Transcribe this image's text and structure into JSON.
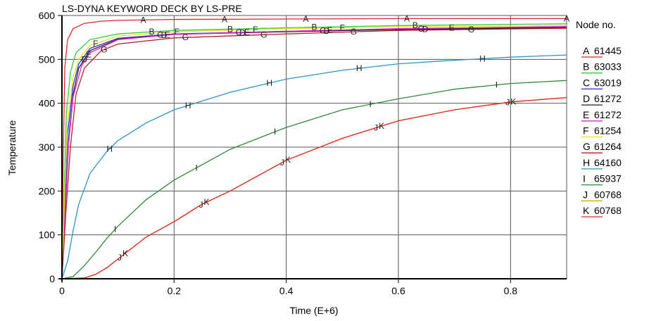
{
  "chart_data": {
    "type": "line",
    "title": "LS-DYNA KEYWORD DECK BY LS-PRE",
    "xlabel": "Time (E+6)",
    "ylabel": "Temperature",
    "xlim": [
      0,
      0.9
    ],
    "ylim": [
      0,
      600
    ],
    "xticks": [
      0,
      0.2,
      0.4,
      0.6,
      0.8
    ],
    "yticks": [
      0,
      100,
      200,
      300,
      400,
      500,
      600
    ],
    "xtick_labels": [
      "0",
      "0.2",
      "0.4",
      "0.6",
      "0.8"
    ],
    "ytick_labels": [
      "0",
      "100",
      "200",
      "300",
      "400",
      "500",
      "600"
    ],
    "grid": true,
    "legend": {
      "title": "Node no.",
      "position": "right"
    },
    "series": [
      {
        "marker": "A",
        "name": "61445",
        "color": "#e0262b",
        "points": [
          [
            0,
            0
          ],
          [
            0.002,
            250
          ],
          [
            0.005,
            480
          ],
          [
            0.01,
            545
          ],
          [
            0.02,
            570
          ],
          [
            0.04,
            582
          ],
          [
            0.07,
            587
          ],
          [
            0.1,
            589
          ],
          [
            0.2,
            591
          ],
          [
            0.4,
            592
          ],
          [
            0.6,
            593
          ],
          [
            0.9,
            593
          ]
        ],
        "marker_x": [
          0.145,
          0.29,
          0.435,
          0.615,
          0.9
        ]
      },
      {
        "marker": "B",
        "name": "63033",
        "color": "#3cc83c",
        "points": [
          [
            0,
            0
          ],
          [
            0.004,
            200
          ],
          [
            0.008,
            380
          ],
          [
            0.015,
            470
          ],
          [
            0.025,
            515
          ],
          [
            0.05,
            545
          ],
          [
            0.1,
            558
          ],
          [
            0.2,
            566
          ],
          [
            0.4,
            572
          ],
          [
            0.6,
            577
          ],
          [
            0.9,
            581
          ]
        ],
        "marker_x": [
          0.16,
          0.3,
          0.45,
          0.63
        ]
      },
      {
        "marker": "C",
        "name": "63019",
        "color": "#2e2ecf",
        "points": [
          [
            0,
            0
          ],
          [
            0.005,
            180
          ],
          [
            0.01,
            330
          ],
          [
            0.02,
            440
          ],
          [
            0.03,
            490
          ],
          [
            0.05,
            525
          ],
          [
            0.1,
            548
          ],
          [
            0.2,
            558
          ],
          [
            0.4,
            564
          ],
          [
            0.6,
            569
          ],
          [
            0.9,
            573
          ]
        ],
        "marker_x": [
          0.175,
          0.315,
          0.465,
          0.64
        ]
      },
      {
        "marker": "D",
        "name": "61272",
        "color": "#222222",
        "points": [
          [
            0,
            0
          ],
          [
            0.006,
            170
          ],
          [
            0.012,
            320
          ],
          [
            0.02,
            420
          ],
          [
            0.03,
            480
          ],
          [
            0.05,
            520
          ],
          [
            0.1,
            546
          ],
          [
            0.2,
            557
          ],
          [
            0.4,
            563
          ],
          [
            0.6,
            568
          ],
          [
            0.9,
            572
          ]
        ],
        "marker_x": [
          0.04,
          0.182,
          0.322,
          0.472,
          0.648
        ]
      },
      {
        "marker": "E",
        "name": "61272",
        "color": "#e61ee6",
        "points": [
          [
            0,
            0
          ],
          [
            0.006,
            160
          ],
          [
            0.012,
            310
          ],
          [
            0.02,
            415
          ],
          [
            0.035,
            485
          ],
          [
            0.05,
            515
          ],
          [
            0.1,
            545
          ],
          [
            0.2,
            557
          ],
          [
            0.4,
            564
          ],
          [
            0.6,
            570
          ],
          [
            0.9,
            575
          ]
        ],
        "marker_x": [
          0.048,
          0.188,
          0.33,
          0.478,
          0.695
        ]
      },
      {
        "marker": "F",
        "name": "61254",
        "color": "#e6e61e",
        "points": [
          [
            0,
            0
          ],
          [
            0.005,
            200
          ],
          [
            0.01,
            360
          ],
          [
            0.02,
            460
          ],
          [
            0.03,
            500
          ],
          [
            0.05,
            532
          ],
          [
            0.1,
            553
          ],
          [
            0.2,
            563
          ],
          [
            0.4,
            570
          ],
          [
            0.6,
            574
          ],
          [
            0.9,
            577
          ]
        ],
        "marker_x": [
          0.06,
          0.205,
          0.345,
          0.5
        ]
      },
      {
        "marker": "G",
        "name": "61264",
        "color": "#b02424",
        "points": [
          [
            0,
            0
          ],
          [
            0.007,
            150
          ],
          [
            0.015,
            300
          ],
          [
            0.025,
            420
          ],
          [
            0.04,
            480
          ],
          [
            0.07,
            520
          ],
          [
            0.1,
            535
          ],
          [
            0.2,
            549
          ],
          [
            0.4,
            558
          ],
          [
            0.6,
            566
          ],
          [
            0.9,
            571
          ]
        ],
        "marker_x": [
          0.075,
          0.22,
          0.36,
          0.52,
          0.73
        ]
      },
      {
        "marker": "H",
        "name": "64160",
        "color": "#2e94c8",
        "points": [
          [
            0,
            0
          ],
          [
            0.01,
            40
          ],
          [
            0.02,
            110
          ],
          [
            0.03,
            170
          ],
          [
            0.05,
            240
          ],
          [
            0.08,
            290
          ],
          [
            0.1,
            315
          ],
          [
            0.15,
            355
          ],
          [
            0.2,
            385
          ],
          [
            0.25,
            405
          ],
          [
            0.3,
            425
          ],
          [
            0.35,
            440
          ],
          [
            0.4,
            455
          ],
          [
            0.5,
            475
          ],
          [
            0.6,
            490
          ],
          [
            0.7,
            498
          ],
          [
            0.8,
            505
          ],
          [
            0.9,
            510
          ]
        ],
        "marker_x": [
          0.085,
          0.225,
          0.37,
          0.53,
          0.75
        ]
      },
      {
        "marker": "I",
        "name": "65937",
        "color": "#2e8a3c",
        "points": [
          [
            0,
            0
          ],
          [
            0.02,
            5
          ],
          [
            0.04,
            30
          ],
          [
            0.06,
            60
          ],
          [
            0.08,
            92
          ],
          [
            0.1,
            120
          ],
          [
            0.15,
            180
          ],
          [
            0.2,
            225
          ],
          [
            0.25,
            260
          ],
          [
            0.3,
            295
          ],
          [
            0.35,
            320
          ],
          [
            0.4,
            345
          ],
          [
            0.5,
            385
          ],
          [
            0.6,
            410
          ],
          [
            0.7,
            432
          ],
          [
            0.8,
            445
          ],
          [
            0.9,
            452
          ]
        ],
        "marker_x": [
          0.095,
          0.24,
          0.38,
          0.55,
          0.775
        ]
      },
      {
        "marker": "J",
        "name": "60768",
        "color": "#c8b400",
        "points": [
          [
            0,
            0
          ],
          [
            0.04,
            2
          ],
          [
            0.06,
            10
          ],
          [
            0.08,
            25
          ],
          [
            0.1,
            45
          ],
          [
            0.12,
            65
          ],
          [
            0.15,
            95
          ],
          [
            0.2,
            130
          ],
          [
            0.25,
            170
          ],
          [
            0.3,
            200
          ],
          [
            0.35,
            235
          ],
          [
            0.4,
            270
          ],
          [
            0.5,
            320
          ],
          [
            0.6,
            360
          ],
          [
            0.7,
            385
          ],
          [
            0.8,
            403
          ],
          [
            0.9,
            413
          ]
        ],
        "marker_x": [
          0.103,
          0.248,
          0.393,
          0.56,
          0.795
        ]
      },
      {
        "marker": "K",
        "name": "60768",
        "color": "#e0262b",
        "points": [
          [
            0,
            0
          ],
          [
            0.04,
            2
          ],
          [
            0.06,
            10
          ],
          [
            0.08,
            25
          ],
          [
            0.1,
            45
          ],
          [
            0.12,
            65
          ],
          [
            0.15,
            95
          ],
          [
            0.2,
            130
          ],
          [
            0.25,
            170
          ],
          [
            0.3,
            200
          ],
          [
            0.35,
            235
          ],
          [
            0.4,
            270
          ],
          [
            0.5,
            320
          ],
          [
            0.6,
            360
          ],
          [
            0.7,
            385
          ],
          [
            0.8,
            403
          ],
          [
            0.9,
            413
          ]
        ],
        "marker_x": [
          0.113,
          0.258,
          0.403,
          0.57,
          0.805
        ]
      }
    ]
  }
}
